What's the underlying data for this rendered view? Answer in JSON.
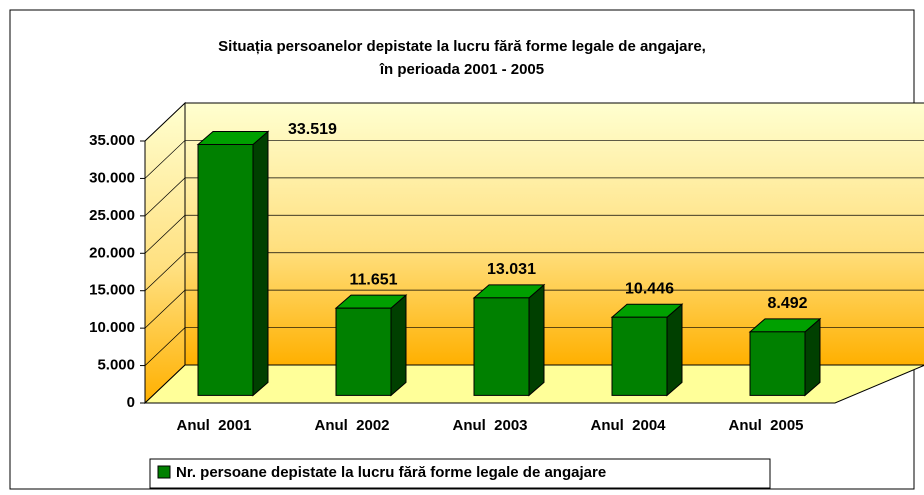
{
  "chart_data": {
    "type": "bar3d",
    "title": "Situația persoanelor depistate la lucru fără forme legale de angajare,",
    "subtitle": "în perioada 2001 - 2005",
    "categories": [
      "Anul  2001",
      "Anul  2002",
      "Anul  2003",
      "Anul  2004",
      "Anul  2005"
    ],
    "series": [
      {
        "name": "Nr. persoane depistate la lucru fără forme legale de angajare",
        "color": "#008000",
        "values": [
          33519,
          11651,
          13031,
          10446,
          8492
        ],
        "value_labels": [
          "33.519",
          "11.651",
          "13.031",
          "10.446",
          "8.492"
        ]
      }
    ],
    "ylim": [
      0,
      35000
    ],
    "yticks": [
      0,
      {
        "value": 5000,
        "label": "5.000"
      },
      {
        "value": 10000,
        "label": "10.000"
      },
      {
        "value": 15000,
        "label": "15.000"
      },
      {
        "value": 20000,
        "label": "20.000"
      },
      {
        "value": 25000,
        "label": "25.000"
      },
      {
        "value": 30000,
        "label": "30.000"
      },
      {
        "value": 35000,
        "label": "35.000"
      }
    ],
    "grid": true,
    "legend": "bottom"
  }
}
